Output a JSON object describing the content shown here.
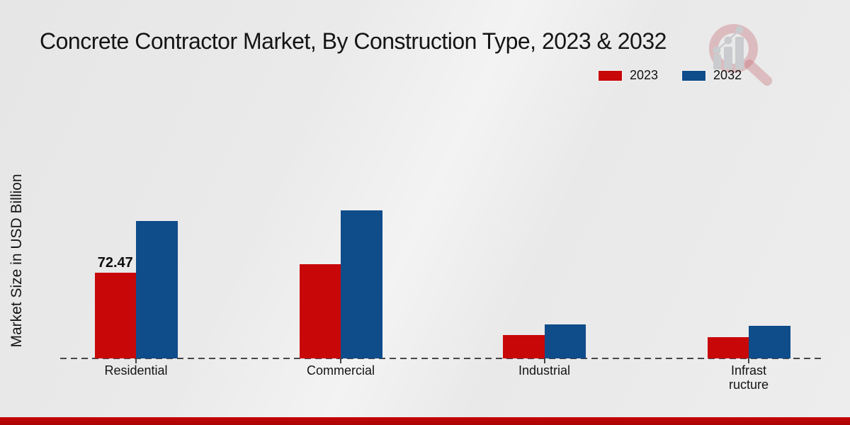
{
  "page": {
    "title": "Concrete Contractor Market, By Construction Type, 2023 & 2032",
    "ylabel": "Market Size in USD Billion"
  },
  "legend": [
    {
      "label": "2023",
      "color": "#c80708"
    },
    {
      "label": "2032",
      "color": "#0f4c8a"
    }
  ],
  "icons": {
    "watermark": "magnifier-bar-chart-logo"
  },
  "colors": {
    "accent_red": "#c80708",
    "accent_blue": "#0f4c8a",
    "footer_strip": "#b90505",
    "axis": "#474747",
    "background": "#e9e9e9"
  },
  "chart_data": {
    "type": "bar",
    "title": "Concrete Contractor Market, By Construction Type, 2023 & 2032",
    "xlabel": "",
    "ylabel": "Market Size in USD Billion",
    "categories": [
      "Residential",
      "Commercial",
      "Industrial",
      "Infrastructure"
    ],
    "categories_display": [
      [
        "Residential"
      ],
      [
        "Commercial"
      ],
      [
        "Industrial"
      ],
      [
        "Infrast",
        "ructure"
      ]
    ],
    "series": [
      {
        "name": "2023",
        "color": "#c80708",
        "values": [
          72.47,
          79.7,
          19.8,
          18.0
        ],
        "point_labels": [
          "72.47",
          "",
          "",
          ""
        ]
      },
      {
        "name": "2032",
        "color": "#0f4c8a",
        "values": [
          116.2,
          125.2,
          28.8,
          27.6
        ],
        "point_labels": [
          "",
          "",
          "",
          ""
        ]
      }
    ],
    "ylim": [
      0,
      140
    ],
    "y_ticks_visible": false,
    "grid": false,
    "legend_position": "top-right",
    "baseline_style": "dashed"
  }
}
